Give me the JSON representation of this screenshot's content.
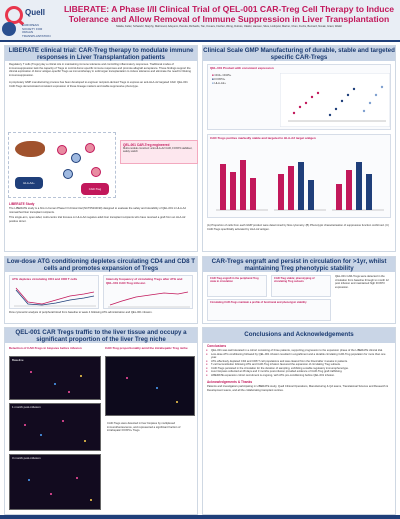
{
  "header": {
    "logo_name": "Quell",
    "logo_sub": "EUROPEAN SOCIETY FOR ORGAN TRANSPLANTATION",
    "title": "LIBERATE: A Phase I/II Clinical Trial of QEL-001 CAR-Treg Cell Therapy to Induce Tolerance and Allow Removal of Immune Suppression in Liver Transplantation",
    "authors": "Ndaba, Keller, Schwartz, Murphy, Mahmood, Adeyemi, Pereira, Richards, Tan, Kovacs, Fischer, Wong, Dubois, Okafor, Hansen, Silva, Lindqvist, Marino, Chen, Fuchs, Bernard, Novak, Grant, Walsh"
  },
  "intro": {
    "heading": "LIBERATE clinical trial: CAR-Treg therapy to modulate immune responses in Liver Transplantation patients",
    "text": "Regulatory T cells (Tregs) play a critical role in maintaining immune tolerance and controlling inflammatory responses. Traditional modes of immunosuppression lack the capacity of Tregs to control donor-specific immune responses and promote allograft acceptance. These findings support the clinical exploration of donor antigen-specific Tregs as immunotherapy in solid organ transplantation to induce tolerance and eliminate the need for lifelong immunosuppression.",
    "text2": "A proprietary GMP manufacturing process has been developed to engineer recipient-derived Tregs to express an anti-HLA-A2 targeted CAR. QEL-001 CAR-Tregs demonstrated consistent expression of these lineage markers and stable suppressive phenotype.",
    "box_title": "QEL-001 CAR-Treg engineered",
    "box_text": "Multi-module construct: anti-HLA-A2 CAR, FOXP3 stabiliser, safety switch",
    "chip_a": "HLA-A2+",
    "chip_b": "CAR-Treg",
    "sub": "LIBERATE Study",
    "sub_text": "The LIBERATE study is a first-in-human Phase I/II clinical trial (NCT05234190) designed to evaluate the safety and tolerability of QEL-001 in HLA-A2 mismatched liver transplant recipients.",
    "sub_text2": "This single-arm, open-label, multi-centre trial focuses on HLA-A2 negative adult liver transplant recipients who have received a graft from an HLA-A2 positive donor."
  },
  "manufacturing": {
    "heading": "Clinical Scale GMP Manufacturing of durable, stable and targeted specific CAR-Tregs",
    "plot_a_title": "QEL-001 Product with consistent expression",
    "plot_b_title": "CAR-Tregs purities markedly stable and targeted to HLA-A2 target antigen",
    "legend_a": "CD4+ CD25+",
    "legend_b": "FOXP3+",
    "legend_c": "HLA-A2+",
    "caption": "(A) Proportion of cells from each GMP product were determined by flow cytometry. (B) Phenotypic characterisation of suppressive function confirmed. (C) CAR-Tregs specifically activated by HLA-A2 antigen."
  },
  "conditioning": {
    "heading": "Low-dose ATG conditioning depletes circulating CD4 and CD8 T cells and promotes expansion of Tregs",
    "plot_a_title": "ATG depletes circulating CD4 and CD8 T cells",
    "plot_b_title": "Intensity frequency of circulating Tregs after ATG and QEL-001 CAR-Treg infusion",
    "caption": "Flow cytometric analysis of peripheral blood from baseline to week 4 following ATG administration and QEL-001 infusion."
  },
  "engraftment": {
    "heading": "CAR-Tregs engraft and persist in circulation for >1yr, whilst maintaining Treg phenotypic stability",
    "plot_a_title": "CAR-Treg engraft in the peripheral Treg state in circulation",
    "plot_b_title": "CAR-Treg stable; phenotyping of circulating Treg subsets",
    "plot_c_title": "Circulating CAR-Tregs maintain a profile of functional and phenotypic stability",
    "caption": "QEL-001 CAR-Tregs were detected in the circulation from baseline through to month 12 post infusion and maintained high FOXP3 expression."
  },
  "trafficking": {
    "heading": "QEL-001 CAR Tregs traffic to the liver tissue and occupy a significant proportion of the liver Treg niche",
    "img_a_title": "Detection of CAR-Tregs in biopsies before infusion",
    "img_b_title": "CAR-Treg proportionality amid the intrahepatic Treg niche",
    "img_labels": [
      "Baseline",
      "1 month post-infusion",
      "3 month post-infusion"
    ],
    "caption": "CAR-Tregs were detected in liver biopsies by multiplexed immunofluorescence, and represented a significant fraction of intrahepatic FOXP3+ Tregs."
  },
  "conclusions": {
    "heading": "Conclusions and Acknowledgements",
    "sub": "Conclusions",
    "bullets": [
      "QEL-001 was well tolerated in a cohort consisting of three patients, supporting progression to the expansion phase of the LIBERATE clinical trial.",
      "Low-dose ATG conditioning followed by QEL-001 infusion resulted in engraftment and a durable circulating CAR-Treg population for more than one year.",
      "ATG effectively depleted CD4 and CD8 T cell populations and was cleared from the blood after 4 weeks in patients.",
      "T-cell reconstitution following ATG and CAR-Treg infusion favoured the expansion of circulating Treg subsets.",
      "CAR-Tregs persisted in the circulation for the duration of sampling, exhibiting a stable regulatory immunophenotype.",
      "Liver biopsies collected at 28 days and 3 months post-infusion provided evidence of CAR-Treg graft trafficking.",
      "LIBERATE expansion cohort recruitment is ongoing, with ATG pre-conditioning before QEL-001 infusion."
    ],
    "ack_sub": "Acknowledgements & Thanks",
    "ack_text": "Patients and investigators participating in LIBERATE study, Quell Clinical Operations, Manufacturing & QA teams, Translational Science and Research & Development teams, and all the collaborating transplant centres."
  },
  "colors": {
    "accent": "#c2185b",
    "navy": "#1f3f7a",
    "panel_head": "#c9d5e6"
  }
}
